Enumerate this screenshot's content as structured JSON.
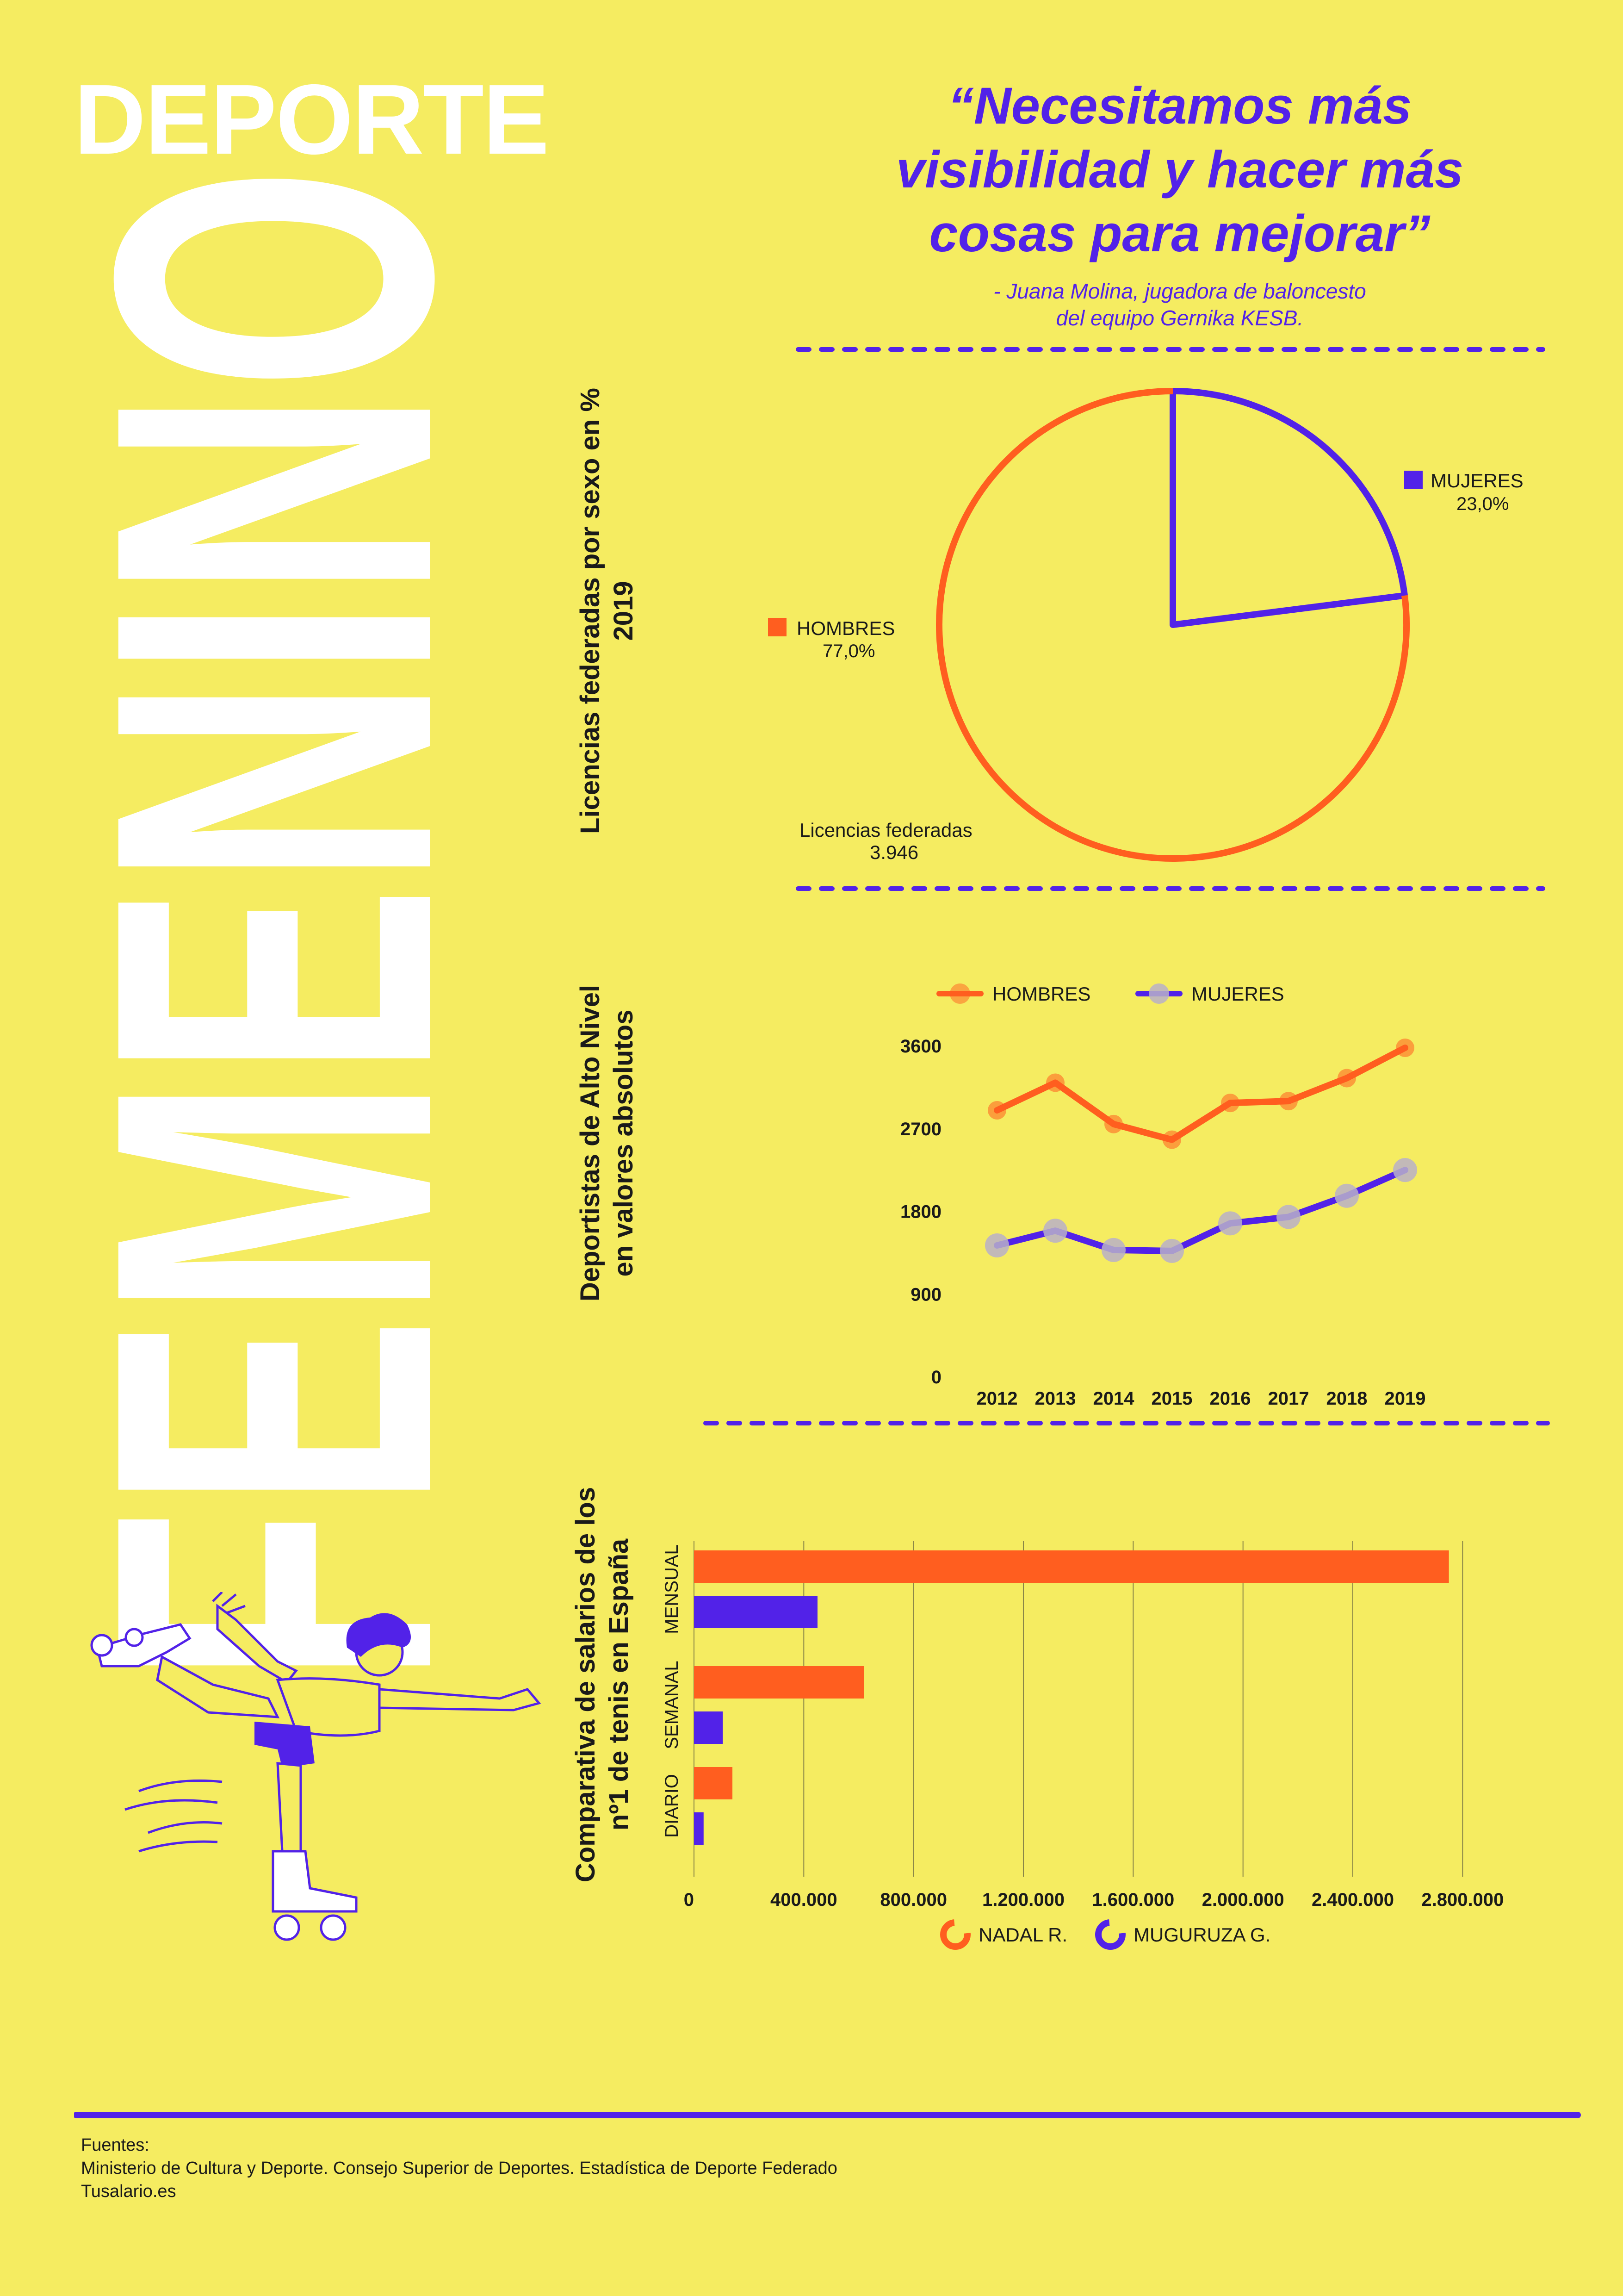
{
  "header": {
    "title_small": "DEPORTE",
    "title_big": "FEMENINO",
    "quote": "“Necesitamos más visibilidad y hacer más cosas para mejorar”",
    "quote_author_line1": "- Juana Molina, jugadora de baloncesto",
    "quote_author_line2": "del equipo Gernika KESB."
  },
  "colors": {
    "background": "#F5EC61",
    "orange": "#FF5E1F",
    "purple": "#5222E8",
    "white": "#FFFFFF"
  },
  "icons": [
    "roller-skater-illustration",
    "legend-swatch"
  ],
  "chart_data": [
    {
      "type": "pie",
      "title_line1": "Licencias federadas por sexo en %",
      "title_line2": "2019",
      "slices": [
        {
          "name": "HOMBRES",
          "value": 77.0,
          "label": "77,0%",
          "color": "#FF5E1F"
        },
        {
          "name": "MUJERES",
          "value": 23.0,
          "label": "23,0%",
          "color": "#5222E8"
        }
      ],
      "total_label": "Licencias federadas",
      "total_value": "3.946"
    },
    {
      "type": "line",
      "title_line1": "Deportistas de Alto Nivel",
      "title_line2": "en valores absolutos",
      "x": [
        "2012",
        "2013",
        "2014",
        "2015",
        "2016",
        "2017",
        "2018",
        "2019"
      ],
      "yticks": [
        "0",
        "900",
        "1800",
        "2700",
        "3600"
      ],
      "ylim": [
        0,
        3600
      ],
      "series": [
        {
          "name": "HOMBRES",
          "color": "#FF5E1F",
          "values": [
            2900,
            3200,
            2750,
            2580,
            2980,
            3000,
            3250,
            3580
          ]
        },
        {
          "name": "MUJERES",
          "color": "#5222E8",
          "values": [
            1430,
            1590,
            1380,
            1370,
            1670,
            1740,
            1970,
            2250
          ]
        }
      ]
    },
    {
      "type": "bar",
      "orientation": "horizontal",
      "title_line1": "Comparativa de salarios de los",
      "title_line2": "nº1 de tenis en España",
      "categories": [
        "MENSUAL",
        "SEMANAL",
        "DIARIO"
      ],
      "xticks": [
        "0",
        "400.000",
        "800.000",
        "1.200.000",
        "1.600.000",
        "2.000.000",
        "2.400.000",
        "2.800.000"
      ],
      "xlim": [
        0,
        3000000
      ],
      "series": [
        {
          "name": "NADAL R.",
          "color": "#FF5E1F",
          "values": [
            2750000,
            620000,
            140000
          ]
        },
        {
          "name": "MUGURUZA G.",
          "color": "#5222E8",
          "values": [
            450000,
            105000,
            35000
          ]
        }
      ]
    }
  ],
  "footer": {
    "sources_title": "Fuentes:",
    "source1": "Ministerio de Cultura y Deporte. Consejo Superior de Deportes. Estadística de Deporte Federado",
    "source2": "Tusalario.es"
  }
}
